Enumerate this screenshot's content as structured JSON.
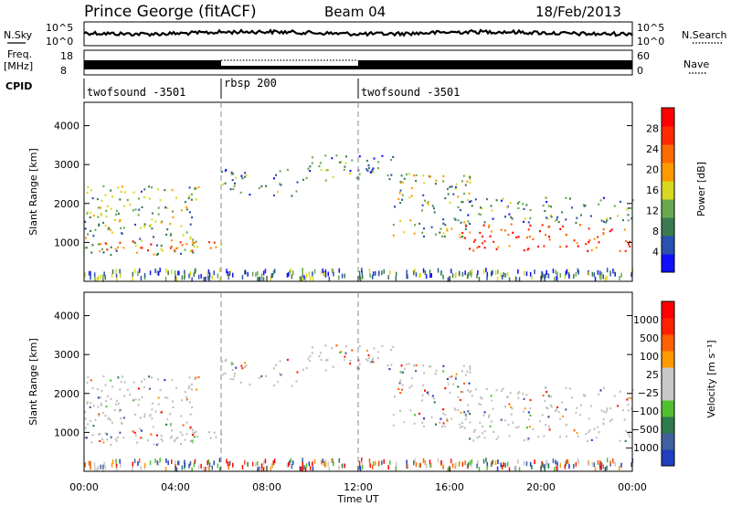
{
  "header": {
    "station": "Prince George (fitACF)",
    "beam": "Beam 04",
    "date": "18/Feb/2013"
  },
  "left_labels": {
    "nsky": "N.Sky",
    "freq": "Freq.",
    "freq_unit": "[MHz]",
    "cpid": "CPID"
  },
  "right_labels": {
    "nsearch": "N.Search",
    "nave": "Nave"
  },
  "noise_axis": {
    "top": "10^5",
    "bottom": "10^0"
  },
  "freq_axis": {
    "top": "18",
    "bottom": "8"
  },
  "nave_axis": {
    "top": "60",
    "bottom": "0"
  },
  "cpid_segments": [
    {
      "label": "twofsound -3501",
      "start_h": 0,
      "end_h": 6
    },
    {
      "label": "rbsp 200",
      "start_h": 6,
      "end_h": 12
    },
    {
      "label": "twofsound -3501",
      "start_h": 12,
      "end_h": 24
    }
  ],
  "colors": {
    "power": [
      "#1010ff",
      "#2a50b0",
      "#3c7a50",
      "#6aa84f",
      "#d8d820",
      "#ff9900",
      "#ff6a00",
      "#ff2a00",
      "#ff0000"
    ],
    "velocity": [
      "#2040c0",
      "#4060a0",
      "#2e7a4a",
      "#50c030",
      "#c8c8c8",
      "#c8c8c8",
      "#ff9900",
      "#ff6000",
      "#ff2000",
      "#ff0000"
    ],
    "ground": "#c0c0bc"
  },
  "chart_data": [
    {
      "type": "heatmap",
      "name": "power",
      "ylabel": "Slant Range [km]",
      "xlim": [
        0,
        24
      ],
      "ylim": [
        0,
        4600
      ],
      "yticks": [
        "1000",
        "2000",
        "3000",
        "4000"
      ],
      "xticks": [
        "00:00",
        "04:00",
        "08:00",
        "12:00",
        "16:00",
        "20:00",
        "00:00"
      ],
      "colorbar": {
        "label": "Power [dB]",
        "ticks": [
          "4",
          "8",
          "12",
          "16",
          "20",
          "24",
          "28"
        ]
      },
      "regions": [
        {
          "x": [
            0,
            5
          ],
          "y": [
            700,
            2500
          ],
          "level": 3
        },
        {
          "x": [
            0,
            6
          ],
          "y": [
            800,
            1100
          ],
          "level": 6
        },
        {
          "x": [
            6,
            9.5
          ],
          "y": [
            2200,
            2900
          ],
          "level": 2
        },
        {
          "x": [
            9.5,
            13.5
          ],
          "y": [
            2600,
            3300
          ],
          "level": 2
        },
        {
          "x": [
            13.5,
            17
          ],
          "y": [
            1100,
            2800
          ],
          "level": 3
        },
        {
          "x": [
            16.5,
            24
          ],
          "y": [
            800,
            1500
          ],
          "level": 7
        },
        {
          "x": [
            16,
            24
          ],
          "y": [
            1500,
            2200
          ],
          "level": 2
        }
      ]
    },
    {
      "type": "heatmap",
      "name": "velocity",
      "ylabel": "Slant Range [km]",
      "xlabel": "Time UT",
      "xlim": [
        0,
        24
      ],
      "ylim": [
        0,
        4600
      ],
      "yticks": [
        "1000",
        "2000",
        "3000",
        "4000"
      ],
      "xticks": [
        "00:00",
        "04:00",
        "08:00",
        "12:00",
        "16:00",
        "20:00",
        "00:00"
      ],
      "colorbar": {
        "label": "Velocity [m s⁻¹]",
        "ticks": [
          "1000",
          "500",
          "100",
          "25",
          "−25",
          "−100",
          "−500",
          "−1000"
        ]
      }
    }
  ]
}
